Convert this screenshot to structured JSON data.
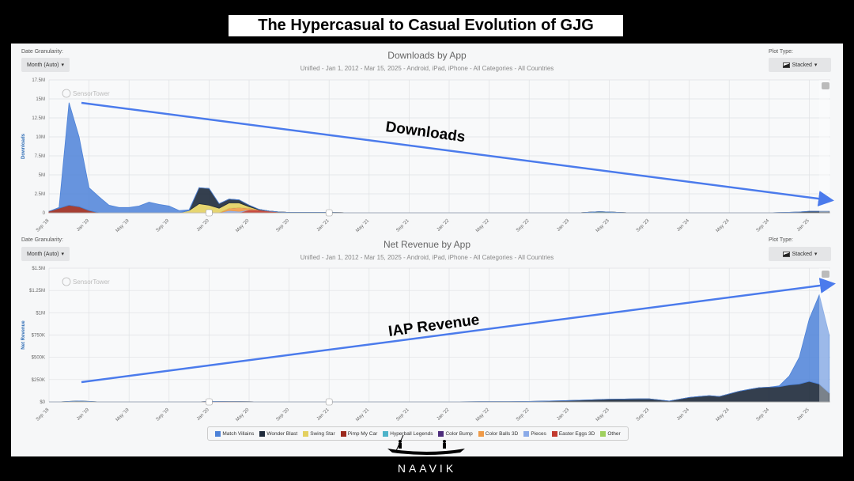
{
  "title": "The Hypercasual to Casual Evolution of GJG",
  "controls": {
    "granularity_label": "Date Granularity:",
    "granularity_value": "Month (Auto)",
    "plot_type_label": "Plot Type:",
    "plot_type_value": "Stacked",
    "watermark": "SensorTower"
  },
  "annotations": {
    "downloads": "Downloads",
    "revenue": "IAP Revenue"
  },
  "footer": {
    "brand": "NAAVIK"
  },
  "chart_data": [
    {
      "type": "area",
      "stacked": true,
      "title": "Downloads by App",
      "subtitle": "Unified - Jan 1, 2012 - Mar 15, 2025 - Android, iPad, iPhone - All Categories - All Countries",
      "ylabel": "Downloads",
      "ylim": [
        0,
        17.5
      ],
      "unit": "M",
      "yticks": [
        "0",
        "2.5M",
        "5M",
        "7.5M",
        "10M",
        "12.5M",
        "15M",
        "17.5M"
      ],
      "series": [
        {
          "name": "Match Villains",
          "points": {
            "2018-09": 0,
            "2018-10": 0.1,
            "2018-11": 13.5,
            "2018-12": 9.2,
            "2019-01": 3.0,
            "2019-02": 2.1,
            "2019-03": 1.0,
            "2019-04": 0.7,
            "2019-05": 0.7,
            "2019-06": 0.9,
            "2019-07": 1.4,
            "2019-08": 1.1,
            "2019-09": 0.9,
            "2019-10": 0.3,
            "2019-11": 0.1,
            "2019-12": 0
          }
        },
        {
          "name": "Wonder Blast",
          "points": {
            "2019-11": 0,
            "2019-12": 2.1,
            "2020-01": 2.2,
            "2020-02": 0.6,
            "2020-03": 0.5,
            "2020-04": 0.4,
            "2020-05": 0.2,
            "2020-06": 0.05,
            "2020-07": 0,
            "2024-09": 0,
            "2024-12": 0.1,
            "2025-01": 0.2,
            "2025-03": 0.2
          }
        },
        {
          "name": "Swing Star",
          "points": {
            "2019-10": 0,
            "2019-11": 0.3,
            "2019-12": 1.2,
            "2020-01": 1.0,
            "2020-02": 0.6,
            "2020-03": 0.7,
            "2020-04": 0.6,
            "2020-05": 0.2,
            "2020-06": 0
          }
        },
        {
          "name": "Pimp My Car",
          "points": {
            "2018-08": 0,
            "2018-09": 0.2,
            "2018-10": 0.6,
            "2018-11": 1.0,
            "2018-12": 0.8,
            "2019-01": 0.3,
            "2019-02": 0
          }
        },
        {
          "name": "Hyperball Legends",
          "points": {
            "2023-02": 0,
            "2023-04": 0.15,
            "2023-05": 0.1,
            "2023-07": 0
          }
        },
        {
          "name": "Color Bump",
          "points": {}
        },
        {
          "name": "Color Balls 3D",
          "points": {
            "2020-02": 0,
            "2020-03": 0.3,
            "2020-04": 0.5,
            "2020-05": 0.2,
            "2020-06": 0
          }
        },
        {
          "name": "Pieces",
          "points": {
            "2020-02": 0,
            "2020-03": 0.3,
            "2020-04": 0.2,
            "2020-05": 0
          }
        },
        {
          "name": "Easter Eggs 3D",
          "points": {
            "2020-04": 0,
            "2020-05": 0.4,
            "2020-06": 0.4,
            "2020-07": 0.2,
            "2020-08": 0.05,
            "2020-09": 0
          }
        },
        {
          "name": "Other",
          "points": {
            "2020-06": 0,
            "2020-08": 0.05,
            "2021-01": 0.05,
            "2021-03": 0
          }
        }
      ]
    },
    {
      "type": "area",
      "stacked": true,
      "title": "Net Revenue by App",
      "subtitle": "Unified - Jan 1, 2012 - Mar 15, 2025 - Android, iPad, iPhone - All Categories - All Countries",
      "ylabel": "Net Revenue",
      "ylim": [
        0,
        1500
      ],
      "unit": "K",
      "yticks": [
        "$0",
        "$250K",
        "$500K",
        "$750K",
        "$1M",
        "$1.25M",
        "$1.5M"
      ],
      "series": [
        {
          "name": "Match Villains",
          "points": {
            "2024-09": 0,
            "2024-10": 10,
            "2024-11": 100,
            "2024-12": 300,
            "2025-01": 700,
            "2025-02": 1000,
            "2025-03": 650
          }
        },
        {
          "name": "Wonder Blast",
          "points": {
            "2021-12": 0,
            "2022-09": 5,
            "2023-01": 15,
            "2023-05": 30,
            "2023-09": 35,
            "2023-11": 10,
            "2024-01": 50,
            "2024-03": 70,
            "2024-04": 60,
            "2024-06": 120,
            "2024-08": 160,
            "2024-10": 170,
            "2024-11": 190,
            "2024-12": 200,
            "2025-01": 230,
            "2025-02": 200,
            "2025-03": 100
          }
        },
        {
          "name": "Swing Star",
          "points": {
            "2018-10": 0,
            "2018-12": 10,
            "2019-02": 0
          }
        },
        {
          "name": "Pimp My Car",
          "points": {
            "2019-12": 0,
            "2020-01": 5,
            "2020-04": 3,
            "2020-06": 0
          }
        },
        {
          "name": "Hyperball Legends",
          "points": {}
        },
        {
          "name": "Color Bump",
          "points": {}
        },
        {
          "name": "Color Balls 3D",
          "points": {}
        },
        {
          "name": "Pieces",
          "points": {}
        },
        {
          "name": "Easter Eggs 3D",
          "points": {}
        },
        {
          "name": "Other",
          "points": {}
        }
      ]
    }
  ],
  "xticks": [
    "Sep '18",
    "Jan '19",
    "May '19",
    "Sep '19",
    "Jan '20",
    "May '20",
    "Sep '20",
    "Jan '21",
    "May '21",
    "Sep '21",
    "Jan '22",
    "May '22",
    "Sep '22",
    "Jan '23",
    "May '23",
    "Sep '23",
    "Jan '24",
    "May '24",
    "Sep '24",
    "Jan '25"
  ],
  "legend": [
    {
      "name": "Match Villains",
      "color": "#4d82d8"
    },
    {
      "name": "Wonder Blast",
      "color": "#1e2a3b"
    },
    {
      "name": "Swing Star",
      "color": "#e3d060"
    },
    {
      "name": "Pimp My Car",
      "color": "#9c2a1e"
    },
    {
      "name": "Hyperball Legends",
      "color": "#4eb3c9"
    },
    {
      "name": "Color Bump",
      "color": "#4d2d7c"
    },
    {
      "name": "Color Balls 3D",
      "color": "#ef9a48"
    },
    {
      "name": "Pieces",
      "color": "#8aaae8"
    },
    {
      "name": "Easter Eggs 3D",
      "color": "#c23a2e"
    },
    {
      "name": "Other",
      "color": "#9fd05e"
    }
  ]
}
